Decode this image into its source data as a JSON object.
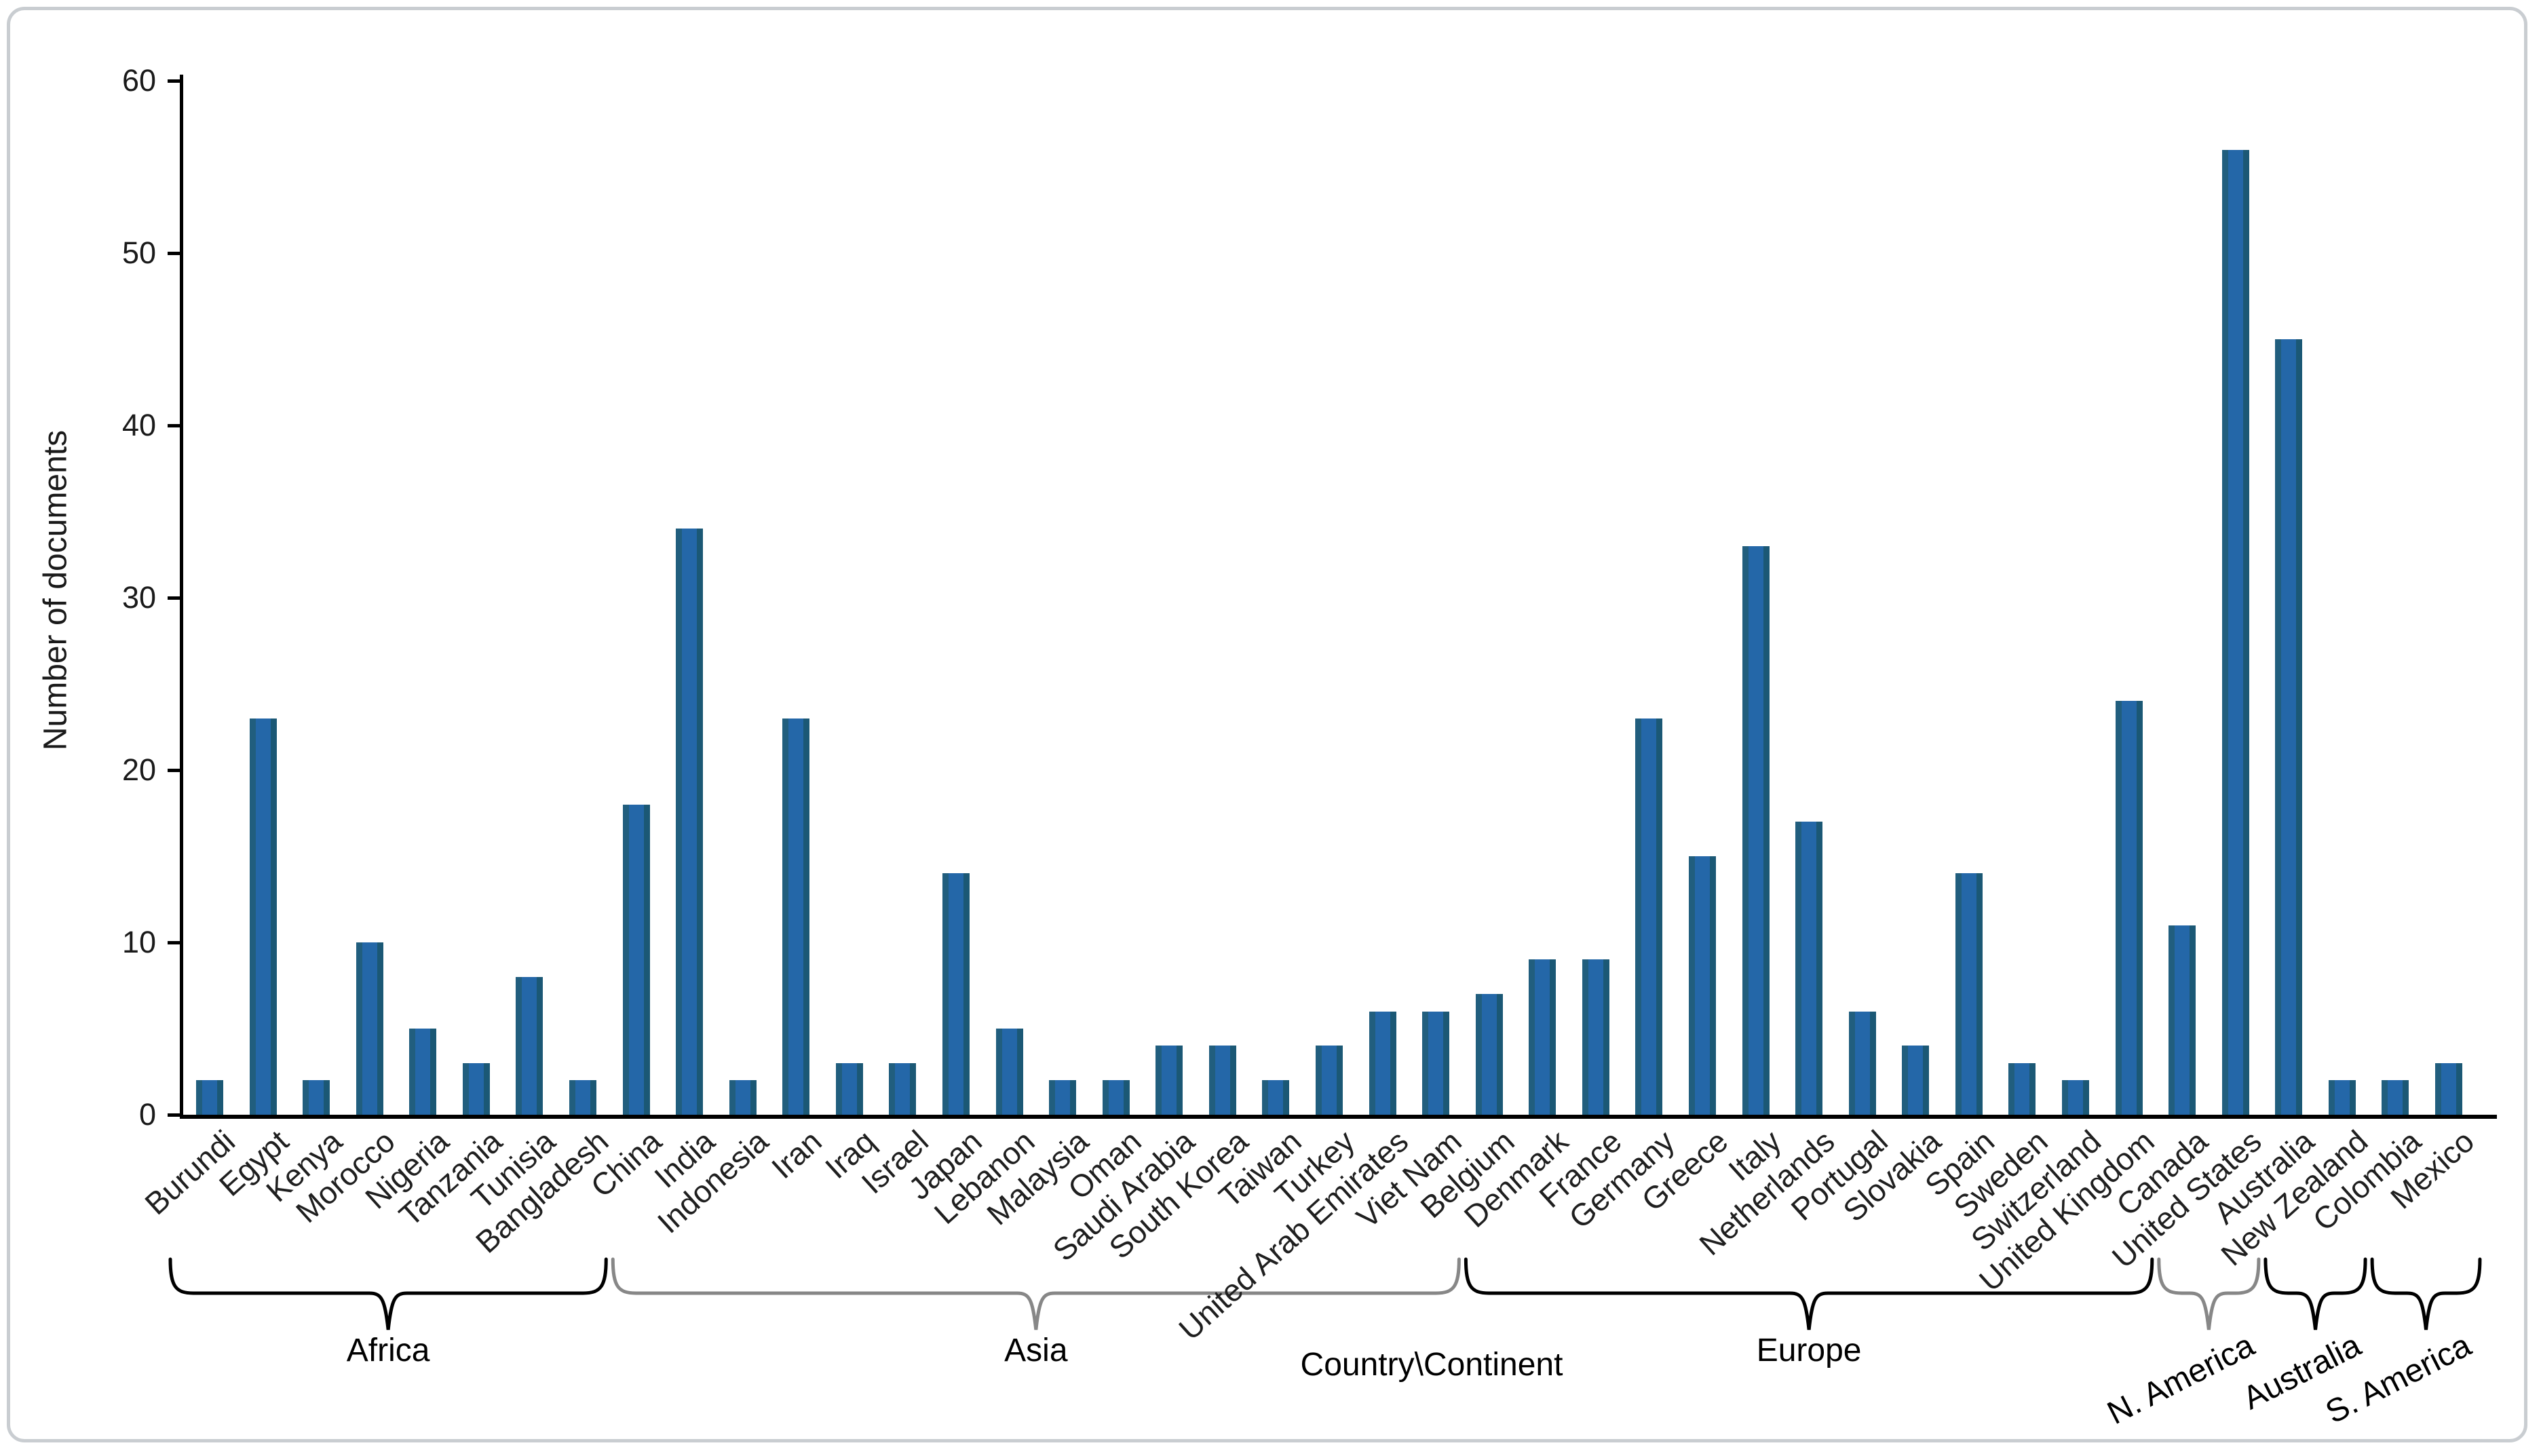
{
  "chart_data": {
    "type": "bar",
    "title": "",
    "xlabel": "Country\\Continent",
    "ylabel": "Number of documents",
    "ylim": [
      0,
      60
    ],
    "yticks": [
      0,
      10,
      20,
      30,
      40,
      50,
      60
    ],
    "grid": false,
    "legend": "none",
    "bar_color": "#2467a8",
    "bar_edge_left_color": "#215e7e",
    "bar_edge_right_color": "#1b5875",
    "categories": [
      "Burundi",
      "Egypt",
      "Kenya",
      "Morocco",
      "Nigeria",
      "Tanzania",
      "Tunisia",
      "Bangladesh",
      "China",
      "India",
      "Indonesia",
      "Iran",
      "Iraq",
      "Israel",
      "Japan",
      "Lebanon",
      "Malaysia",
      "Oman",
      "Saudi Arabia",
      "South Korea",
      "Taiwan",
      "Turkey",
      "United Arab Emirates",
      "Viet Nam",
      "Belgium",
      "Denmark",
      "France",
      "Germany",
      "Greece",
      "Italy",
      "Netherlands",
      "Portugal",
      "Slovakia",
      "Spain",
      "Sweden",
      "Switzerland",
      "United Kingdom",
      "Canada",
      "United States",
      "Australia",
      "New Zealand",
      "Colombia",
      "Mexico"
    ],
    "values": [
      2,
      23,
      2,
      10,
      5,
      3,
      8,
      2,
      18,
      34,
      2,
      23,
      3,
      3,
      14,
      5,
      2,
      2,
      4,
      4,
      2,
      4,
      6,
      6,
      7,
      9,
      9,
      23,
      15,
      33,
      17,
      6,
      4,
      14,
      3,
      2,
      24,
      11,
      56,
      45,
      2,
      2,
      3
    ],
    "groups": [
      {
        "label": "Africa",
        "start": 0,
        "end": 7,
        "brace_color": "#000000",
        "label_style": "horizontal"
      },
      {
        "label": "Asia",
        "start": 8,
        "end": 23,
        "brace_color": "#878787",
        "label_style": "horizontal"
      },
      {
        "label": "Europe",
        "start": 24,
        "end": 36,
        "brace_color": "#000000",
        "label_style": "horizontal"
      },
      {
        "label": "N. America",
        "start": 37,
        "end": 38,
        "brace_color": "#878787",
        "label_style": "rotated"
      },
      {
        "label": "Australia",
        "start": 39,
        "end": 40,
        "brace_color": "#000000",
        "label_style": "rotated"
      },
      {
        "label": "S. America",
        "start": 41,
        "end": 42,
        "brace_color": "#000000",
        "label_style": "rotated"
      }
    ]
  }
}
